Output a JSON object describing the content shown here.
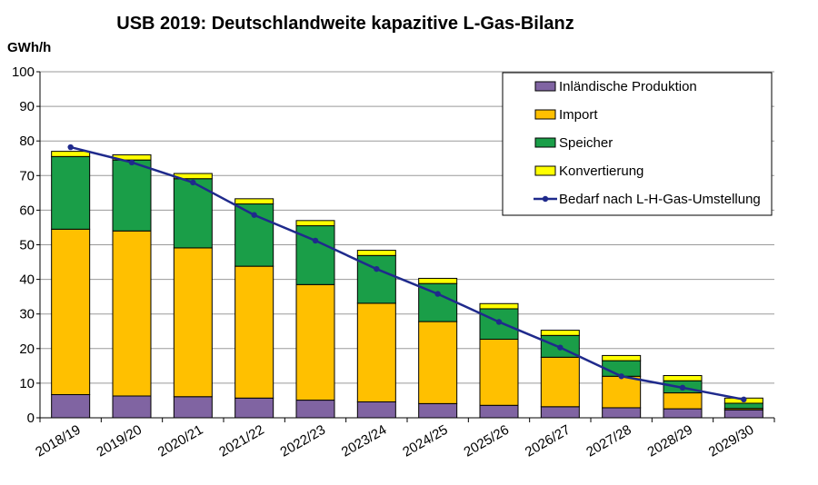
{
  "chart_data": {
    "type": "bar",
    "stacked": true,
    "title": "USB 2019: Deutschlandweite kapazitive L-Gas-Bilanz",
    "ylabel": "GWh/h",
    "xlabel": "",
    "ylim": [
      0,
      100
    ],
    "yticks": [
      0,
      10,
      20,
      30,
      40,
      50,
      60,
      70,
      80,
      90,
      100
    ],
    "grid": true,
    "legend_position": "top-right",
    "categories": [
      "2018/19",
      "2019/20",
      "2020/21",
      "2021/22",
      "2022/23",
      "2023/24",
      "2024/25",
      "2025/26",
      "2026/27",
      "2027/28",
      "2028/29",
      "2029/30"
    ],
    "series": [
      {
        "name": "Inländische Produktion",
        "kind": "bar",
        "color": "#8064a2",
        "values": [
          6.7,
          6.3,
          6.1,
          5.7,
          5.1,
          4.6,
          4.1,
          3.6,
          3.2,
          2.9,
          2.6,
          2.3
        ]
      },
      {
        "name": "Import",
        "kind": "bar",
        "color": "#ffc000",
        "values": [
          47.8,
          47.7,
          43.0,
          38.1,
          33.4,
          28.5,
          23.7,
          19.1,
          14.3,
          9.1,
          4.6,
          0.4
        ]
      },
      {
        "name": "Speicher",
        "kind": "bar",
        "color": "#1a9e48",
        "values": [
          21.0,
          20.5,
          20.0,
          18.0,
          17.0,
          13.8,
          11.0,
          8.8,
          6.3,
          4.5,
          3.5,
          1.5
        ]
      },
      {
        "name": "Konvertierung",
        "kind": "bar",
        "color": "#ffff00",
        "values": [
          1.5,
          1.5,
          1.5,
          1.5,
          1.5,
          1.5,
          1.5,
          1.5,
          1.5,
          1.5,
          1.5,
          1.5
        ]
      },
      {
        "name": "Bedarf nach L-H-Gas-Umstellung",
        "kind": "line",
        "color": "#1f2a8c",
        "values": [
          78.2,
          73.8,
          68.0,
          58.6,
          51.2,
          43.0,
          35.8,
          27.7,
          20.3,
          12.0,
          8.7,
          5.3
        ]
      }
    ]
  }
}
